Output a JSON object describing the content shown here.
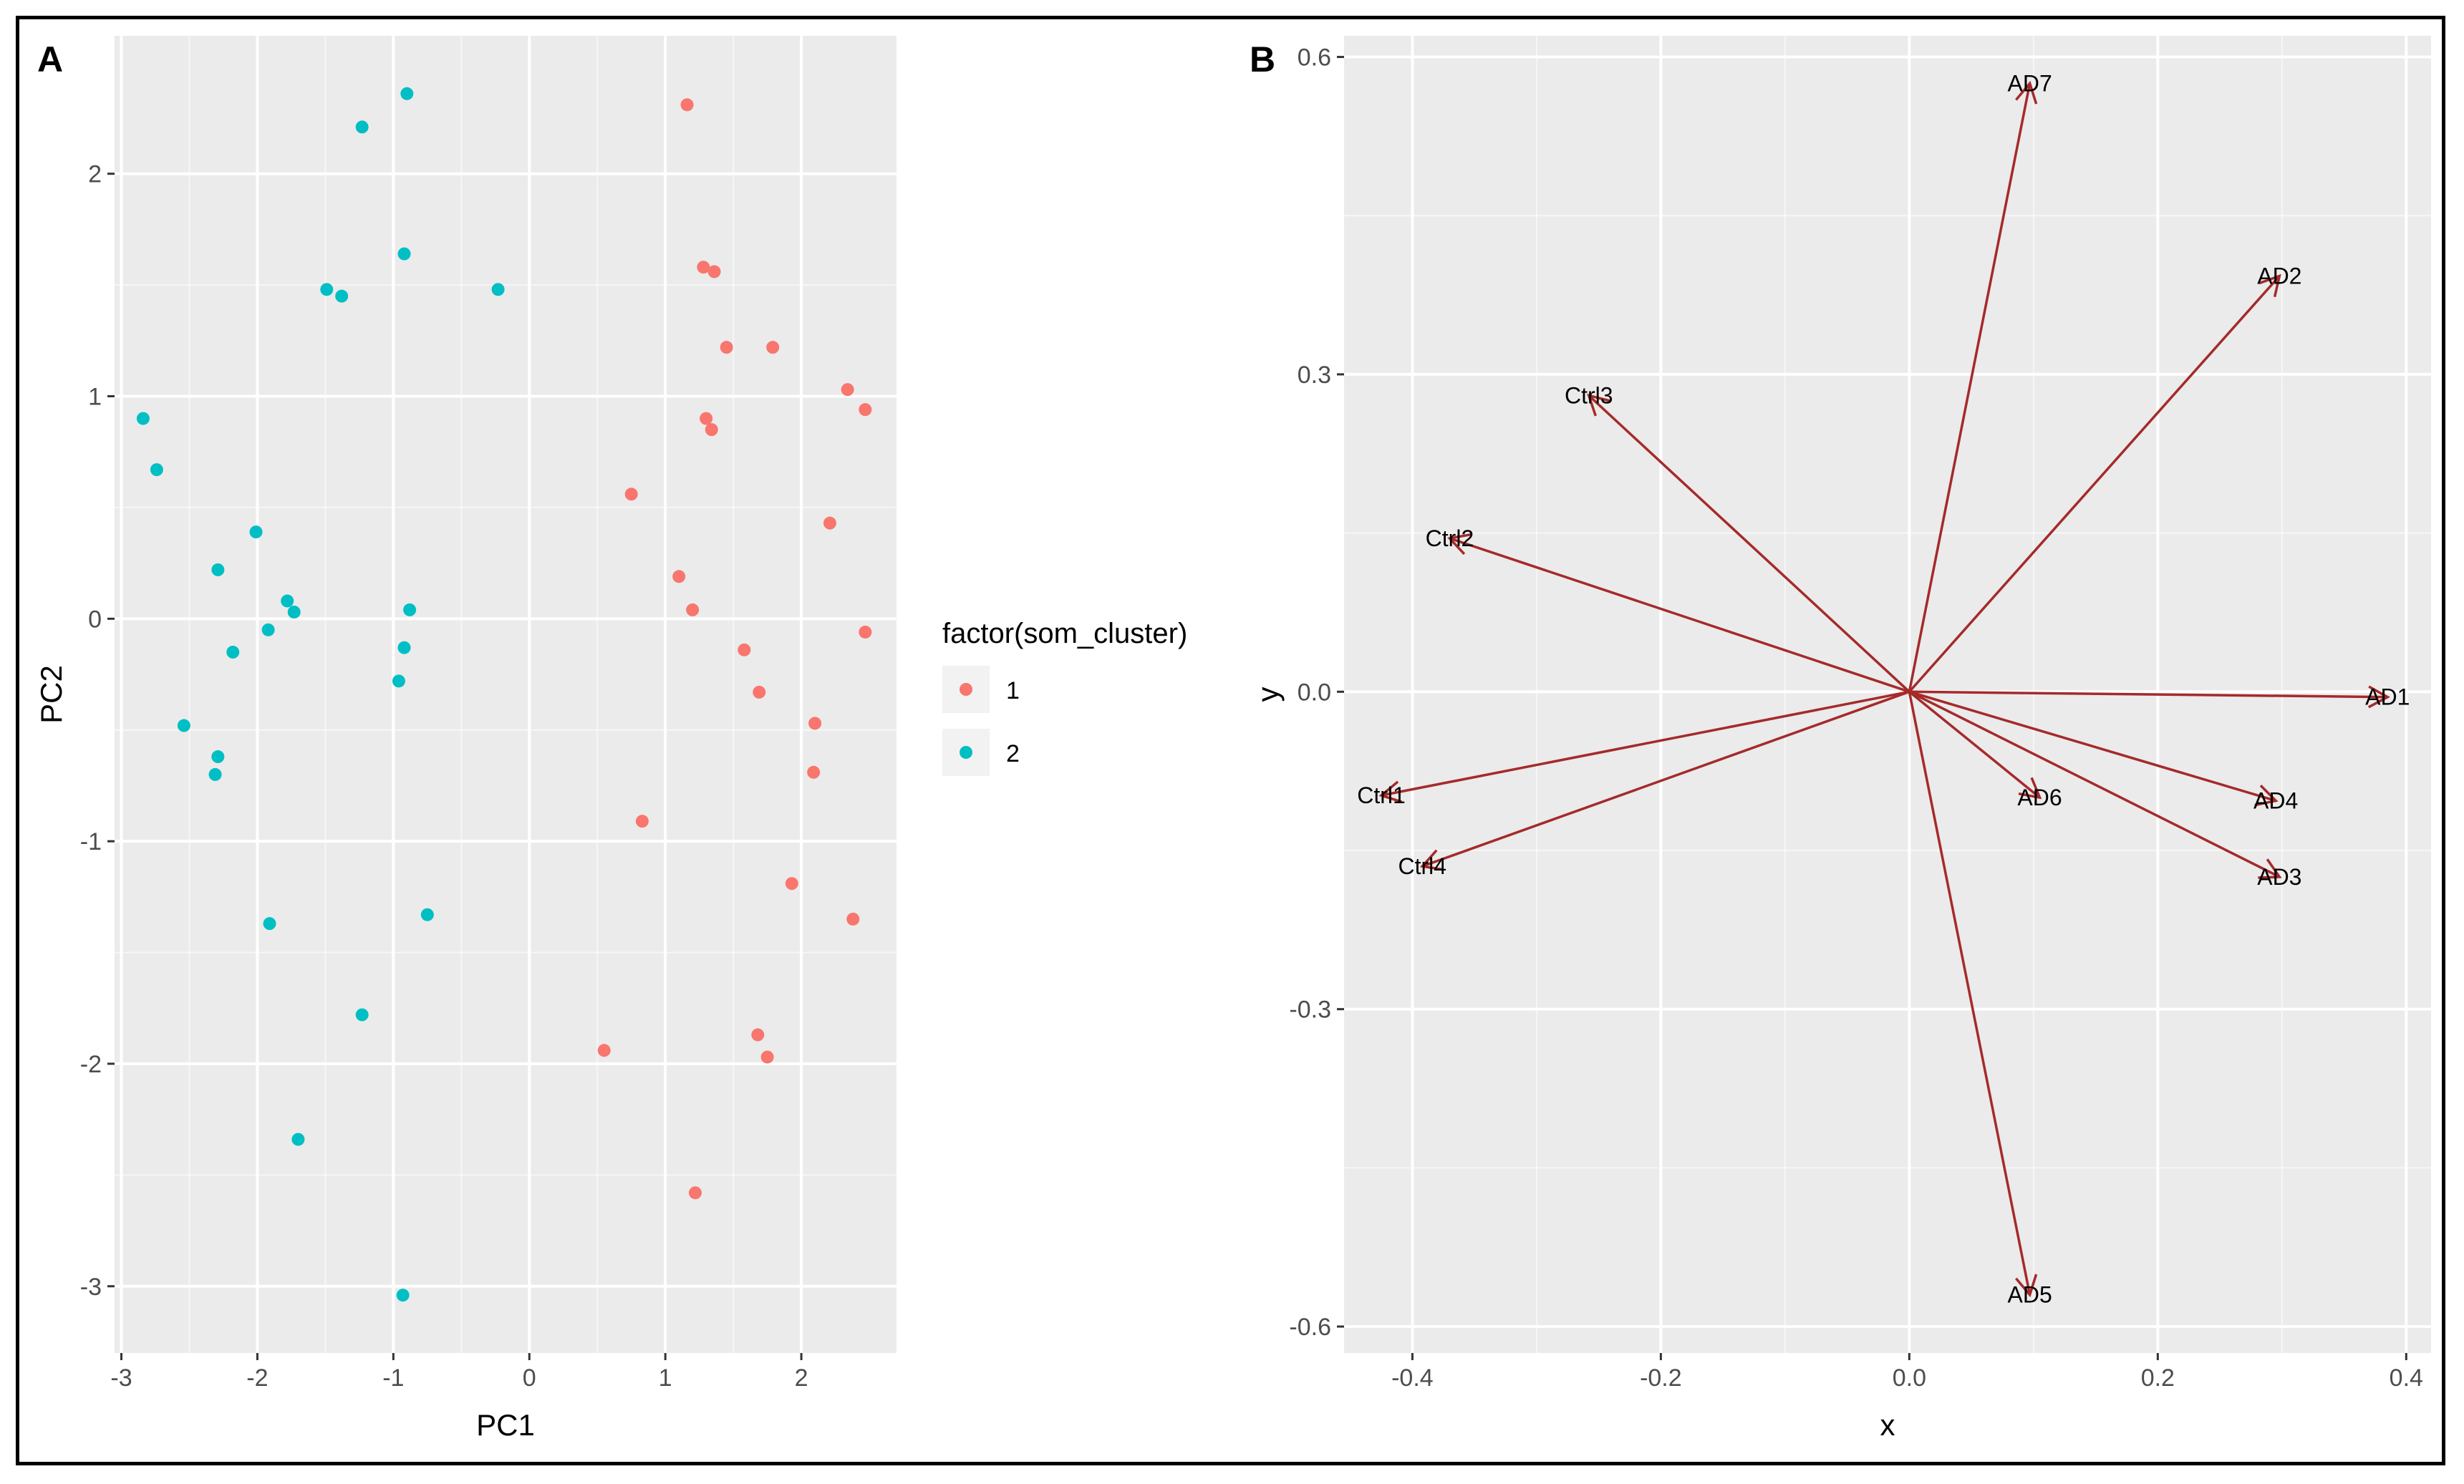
{
  "panel_labels": [
    "A",
    "B"
  ],
  "colors": {
    "panel_bg": "#ebebeb",
    "grid_major": "#ffffff",
    "tick": "#333333",
    "tick_text": "#4d4d4d",
    "cluster_1": "#f8766d",
    "cluster_2": "#00bfc4",
    "arrow": "#a52a2a"
  },
  "chart_data": [
    {
      "type": "scatter",
      "panel": "A",
      "title": "",
      "xlabel": "PC1",
      "ylabel": "PC2",
      "xlim": [
        -3.05,
        2.7
      ],
      "ylim": [
        -3.3,
        2.62
      ],
      "xticks": [
        -3,
        -2,
        -1,
        0,
        1,
        2
      ],
      "yticks": [
        -3,
        -2,
        -1,
        0,
        1,
        2
      ],
      "grid": true,
      "legend": {
        "title": "factor(som_cluster)",
        "position": "right",
        "entries": [
          "1",
          "2"
        ]
      },
      "series": [
        {
          "name": "1",
          "points": [
            [
              1.16,
              2.31
            ],
            [
              1.28,
              1.58
            ],
            [
              1.36,
              1.56
            ],
            [
              1.45,
              1.22
            ],
            [
              1.79,
              1.22
            ],
            [
              2.34,
              1.03
            ],
            [
              2.47,
              0.94
            ],
            [
              1.3,
              0.9
            ],
            [
              1.34,
              0.85
            ],
            [
              0.75,
              0.56
            ],
            [
              2.21,
              0.43
            ],
            [
              1.1,
              0.19
            ],
            [
              1.2,
              0.04
            ],
            [
              2.47,
              -0.06
            ],
            [
              1.58,
              -0.14
            ],
            [
              1.69,
              -0.33
            ],
            [
              2.1,
              -0.47
            ],
            [
              2.09,
              -0.69
            ],
            [
              0.83,
              -0.91
            ],
            [
              1.93,
              -1.19
            ],
            [
              2.38,
              -1.35
            ],
            [
              0.55,
              -1.94
            ],
            [
              1.68,
              -1.87
            ],
            [
              1.75,
              -1.97
            ],
            [
              1.22,
              -2.58
            ]
          ]
        },
        {
          "name": "2",
          "points": [
            [
              -0.9,
              2.36
            ],
            [
              -1.23,
              2.21
            ],
            [
              -0.92,
              1.64
            ],
            [
              -1.49,
              1.48
            ],
            [
              -1.38,
              1.45
            ],
            [
              -0.23,
              1.48
            ],
            [
              -2.84,
              0.9
            ],
            [
              -2.74,
              0.67
            ],
            [
              -2.01,
              0.39
            ],
            [
              -2.29,
              0.22
            ],
            [
              -1.78,
              0.08
            ],
            [
              -1.73,
              0.03
            ],
            [
              -0.88,
              0.04
            ],
            [
              -1.92,
              -0.05
            ],
            [
              -2.18,
              -0.15
            ],
            [
              -0.92,
              -0.13
            ],
            [
              -0.96,
              -0.28
            ],
            [
              -2.54,
              -0.48
            ],
            [
              -2.29,
              -0.62
            ],
            [
              -2.31,
              -0.7
            ],
            [
              -1.91,
              -1.37
            ],
            [
              -0.75,
              -1.33
            ],
            [
              -1.23,
              -1.78
            ],
            [
              -1.7,
              -2.34
            ],
            [
              -0.93,
              -3.04
            ]
          ]
        }
      ]
    },
    {
      "type": "vector",
      "panel": "B",
      "title": "",
      "xlabel": "x",
      "ylabel": "y",
      "xlim": [
        -0.455,
        0.42
      ],
      "ylim": [
        -0.625,
        0.62
      ],
      "xticks": [
        -0.4,
        -0.2,
        0.0,
        0.2,
        0.4
      ],
      "xtick_labels": [
        "-0.4",
        "-0.2",
        "0.0",
        "0.2",
        "0.4"
      ],
      "yticks": [
        -0.6,
        -0.3,
        0.0,
        0.3,
        0.6
      ],
      "ytick_labels": [
        "-0.6",
        "-0.3",
        "0.0",
        "0.3",
        "0.6"
      ],
      "grid": true,
      "vectors": [
        {
          "label": "AD1",
          "x": 0.385,
          "y": -0.005
        },
        {
          "label": "AD2",
          "x": 0.298,
          "y": 0.393
        },
        {
          "label": "AD3",
          "x": 0.298,
          "y": -0.175
        },
        {
          "label": "AD4",
          "x": 0.295,
          "y": -0.103
        },
        {
          "label": "AD5",
          "x": 0.097,
          "y": -0.57
        },
        {
          "label": "AD6",
          "x": 0.105,
          "y": -0.1
        },
        {
          "label": "AD7",
          "x": 0.097,
          "y": 0.575
        },
        {
          "label": "Ctrl1",
          "x": -0.425,
          "y": -0.098
        },
        {
          "label": "Ctrl2",
          "x": -0.37,
          "y": 0.145
        },
        {
          "label": "Ctrl3",
          "x": -0.258,
          "y": 0.28
        },
        {
          "label": "Ctrl4",
          "x": -0.392,
          "y": -0.165
        }
      ]
    }
  ]
}
